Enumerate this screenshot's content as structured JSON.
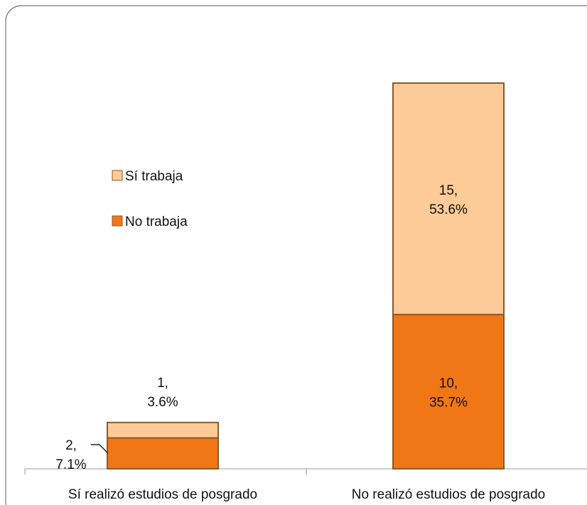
{
  "chart_data": {
    "type": "stacked_bar",
    "categories": [
      "Sí realizó estudios de posgrado",
      "No realizó estudios de posgrado"
    ],
    "series": [
      {
        "name": "No trabaja",
        "color": "#f07616",
        "values": [
          2,
          10
        ],
        "value_labels": [
          "2,\n7.1%",
          "10,\n35.7%"
        ]
      },
      {
        "name": "Sí trabaja",
        "color": "#fccb98",
        "values": [
          1,
          15
        ],
        "value_labels": [
          "1,\n3.6%",
          "15,\n53.6%"
        ]
      }
    ],
    "legend": "left"
  }
}
